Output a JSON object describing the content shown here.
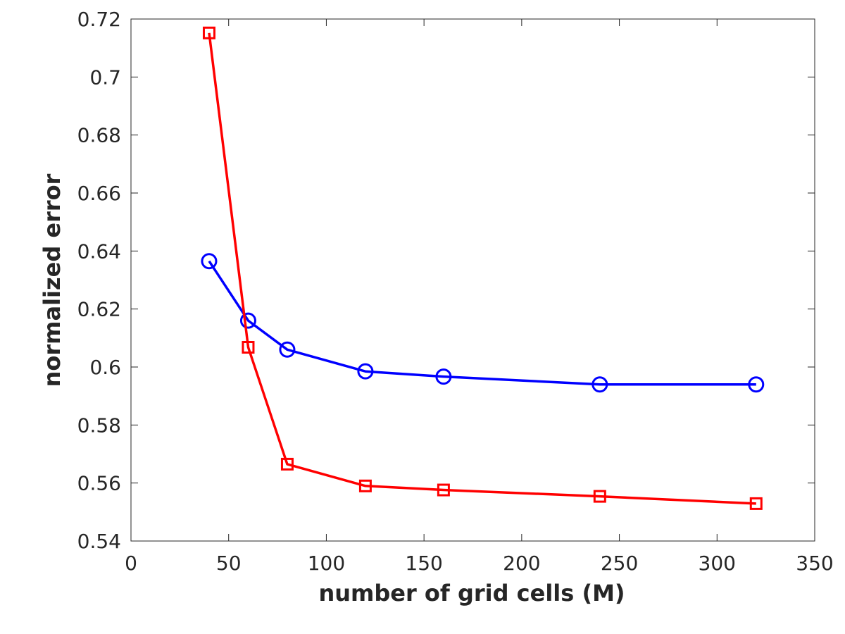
{
  "chart_data": {
    "type": "line",
    "title": "",
    "xlabel": "number of grid cells (M)",
    "ylabel": "normalized error",
    "xlim": [
      0,
      350
    ],
    "ylim": [
      0.54,
      0.72
    ],
    "xticks": [
      0,
      50,
      100,
      150,
      200,
      250,
      300,
      350
    ],
    "yticks": [
      0.54,
      0.56,
      0.58,
      0.6,
      0.62,
      0.64,
      0.66,
      0.68,
      0.7,
      0.72
    ],
    "xtick_labels": [
      "0",
      "50",
      "100",
      "150",
      "200",
      "250",
      "300",
      "350"
    ],
    "ytick_labels": [
      "0.54",
      "0.56",
      "0.58",
      "0.6",
      "0.62",
      "0.64",
      "0.66",
      "0.68",
      "0.7",
      "0.72"
    ],
    "grid": false,
    "x": [
      40,
      60,
      80,
      120,
      160,
      240,
      320
    ],
    "series": [
      {
        "name": "circle-series",
        "color": "#0000ff",
        "marker": "circle",
        "values": [
          0.6365,
          0.616,
          0.606,
          0.5985,
          0.5967,
          0.594,
          0.594
        ]
      },
      {
        "name": "square-series",
        "color": "#ff0000",
        "marker": "square",
        "values": [
          0.7152,
          0.6068,
          0.5665,
          0.559,
          0.5576,
          0.5554,
          0.5529
        ]
      }
    ]
  }
}
